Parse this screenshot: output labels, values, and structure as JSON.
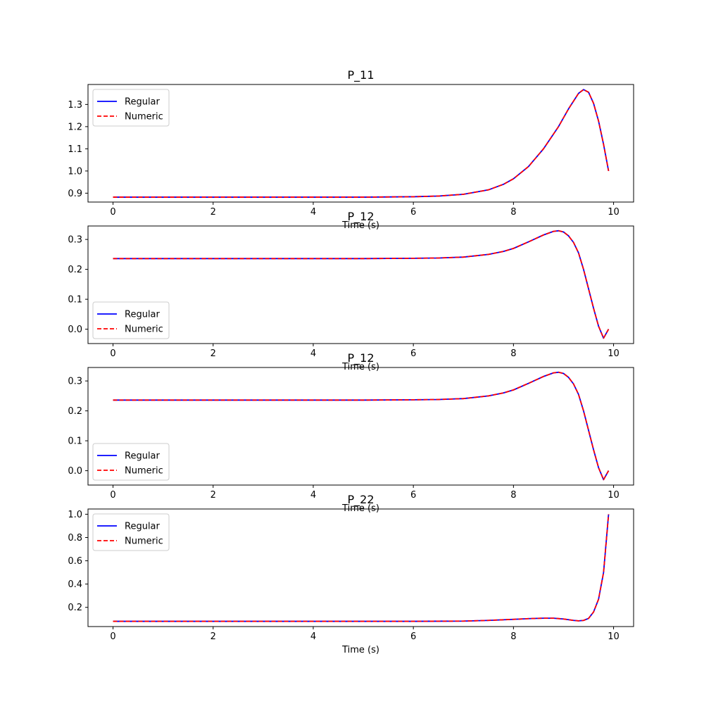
{
  "chart_data": [
    {
      "type": "line",
      "title": "P_11",
      "xlabel": "Time (s)",
      "ylabel": "",
      "xlim": [
        -0.5,
        10.4
      ],
      "ylim": [
        0.86,
        1.39
      ],
      "xticks": [
        0,
        2,
        4,
        6,
        8,
        10
      ],
      "xtick_labels": [
        "0",
        "2",
        "4",
        "6",
        "8",
        "10"
      ],
      "yticks": [
        0.9,
        1.0,
        1.1,
        1.2,
        1.3
      ],
      "ytick_labels": [
        "0.9",
        "1.0",
        "1.1",
        "1.2",
        "1.3"
      ],
      "grid": false,
      "legend": "upper-left",
      "x": [
        0,
        1,
        2,
        3,
        4,
        5,
        6,
        6.5,
        7,
        7.5,
        7.8,
        8,
        8.3,
        8.6,
        8.9,
        9.1,
        9.3,
        9.4,
        9.5,
        9.6,
        9.7,
        9.8,
        9.9
      ],
      "series": [
        {
          "name": "Regular",
          "color": "#0000ff",
          "dash": "solid",
          "values": [
            0.882,
            0.882,
            0.882,
            0.882,
            0.882,
            0.882,
            0.884,
            0.887,
            0.895,
            0.915,
            0.94,
            0.965,
            1.02,
            1.1,
            1.2,
            1.28,
            1.35,
            1.367,
            1.355,
            1.305,
            1.225,
            1.12,
            1.0
          ]
        },
        {
          "name": "Numeric",
          "color": "#ff0000",
          "dash": "dashed",
          "values": [
            0.882,
            0.882,
            0.882,
            0.882,
            0.882,
            0.882,
            0.884,
            0.887,
            0.895,
            0.915,
            0.94,
            0.965,
            1.02,
            1.1,
            1.2,
            1.28,
            1.35,
            1.367,
            1.355,
            1.305,
            1.225,
            1.12,
            1.0
          ]
        }
      ]
    },
    {
      "type": "line",
      "title": "P_12",
      "xlabel": "Time (s)",
      "ylabel": "",
      "xlim": [
        -0.5,
        10.4
      ],
      "ylim": [
        -0.048,
        0.345
      ],
      "xticks": [
        0,
        2,
        4,
        6,
        8,
        10
      ],
      "xtick_labels": [
        "0",
        "2",
        "4",
        "6",
        "8",
        "10"
      ],
      "yticks": [
        0.0,
        0.1,
        0.2,
        0.3
      ],
      "ytick_labels": [
        "0.0",
        "0.1",
        "0.2",
        "0.3"
      ],
      "grid": false,
      "legend": "lower-left",
      "x": [
        0,
        1,
        2,
        3,
        4,
        5,
        6,
        6.5,
        7,
        7.5,
        7.8,
        8,
        8.3,
        8.6,
        8.8,
        8.9,
        9.0,
        9.1,
        9.2,
        9.3,
        9.4,
        9.5,
        9.6,
        9.7,
        9.8,
        9.9
      ],
      "series": [
        {
          "name": "Regular",
          "color": "#0000ff",
          "dash": "solid",
          "values": [
            0.236,
            0.236,
            0.236,
            0.236,
            0.236,
            0.236,
            0.237,
            0.238,
            0.241,
            0.25,
            0.26,
            0.27,
            0.292,
            0.315,
            0.327,
            0.329,
            0.325,
            0.312,
            0.29,
            0.255,
            0.2,
            0.135,
            0.07,
            0.01,
            -0.03,
            0.0
          ]
        },
        {
          "name": "Numeric",
          "color": "#ff0000",
          "dash": "dashed",
          "values": [
            0.236,
            0.236,
            0.236,
            0.236,
            0.236,
            0.236,
            0.237,
            0.238,
            0.241,
            0.25,
            0.26,
            0.27,
            0.292,
            0.315,
            0.327,
            0.329,
            0.325,
            0.312,
            0.29,
            0.255,
            0.2,
            0.135,
            0.07,
            0.01,
            -0.03,
            0.0
          ]
        }
      ]
    },
    {
      "type": "line",
      "title": "P_12",
      "xlabel": "Time (s)",
      "ylabel": "",
      "xlim": [
        -0.5,
        10.4
      ],
      "ylim": [
        -0.048,
        0.345
      ],
      "xticks": [
        0,
        2,
        4,
        6,
        8,
        10
      ],
      "xtick_labels": [
        "0",
        "2",
        "4",
        "6",
        "8",
        "10"
      ],
      "yticks": [
        0.0,
        0.1,
        0.2,
        0.3
      ],
      "ytick_labels": [
        "0.0",
        "0.1",
        "0.2",
        "0.3"
      ],
      "grid": false,
      "legend": "lower-left",
      "x": [
        0,
        1,
        2,
        3,
        4,
        5,
        6,
        6.5,
        7,
        7.5,
        7.8,
        8,
        8.3,
        8.6,
        8.8,
        8.9,
        9.0,
        9.1,
        9.2,
        9.3,
        9.4,
        9.5,
        9.6,
        9.7,
        9.8,
        9.9
      ],
      "series": [
        {
          "name": "Regular",
          "color": "#0000ff",
          "dash": "solid",
          "values": [
            0.236,
            0.236,
            0.236,
            0.236,
            0.236,
            0.236,
            0.237,
            0.238,
            0.241,
            0.25,
            0.26,
            0.27,
            0.292,
            0.315,
            0.327,
            0.329,
            0.325,
            0.312,
            0.29,
            0.255,
            0.2,
            0.135,
            0.07,
            0.01,
            -0.03,
            0.0
          ]
        },
        {
          "name": "Numeric",
          "color": "#ff0000",
          "dash": "dashed",
          "values": [
            0.236,
            0.236,
            0.236,
            0.236,
            0.236,
            0.236,
            0.237,
            0.238,
            0.241,
            0.25,
            0.26,
            0.27,
            0.292,
            0.315,
            0.327,
            0.329,
            0.325,
            0.312,
            0.29,
            0.255,
            0.2,
            0.135,
            0.07,
            0.01,
            -0.03,
            0.0
          ]
        }
      ]
    },
    {
      "type": "line",
      "title": "P_22",
      "xlabel": "Time (s)",
      "ylabel": "",
      "xlim": [
        -0.5,
        10.4
      ],
      "ylim": [
        0.035,
        1.045
      ],
      "xticks": [
        0,
        2,
        4,
        6,
        8,
        10
      ],
      "xtick_labels": [
        "0",
        "2",
        "4",
        "6",
        "8",
        "10"
      ],
      "yticks": [
        0.2,
        0.4,
        0.6,
        0.8,
        1.0
      ],
      "ytick_labels": [
        "0.2",
        "0.4",
        "0.6",
        "0.8",
        "1.0"
      ],
      "grid": false,
      "legend": "upper-left",
      "x": [
        0,
        1,
        2,
        3,
        4,
        5,
        6,
        7,
        7.5,
        8,
        8.3,
        8.6,
        8.8,
        9.0,
        9.2,
        9.3,
        9.4,
        9.5,
        9.6,
        9.7,
        9.8,
        9.9
      ],
      "series": [
        {
          "name": "Regular",
          "color": "#0000ff",
          "dash": "solid",
          "values": [
            0.08,
            0.08,
            0.08,
            0.08,
            0.08,
            0.08,
            0.08,
            0.082,
            0.088,
            0.097,
            0.103,
            0.107,
            0.107,
            0.1,
            0.088,
            0.084,
            0.088,
            0.105,
            0.16,
            0.27,
            0.5,
            1.0
          ]
        },
        {
          "name": "Numeric",
          "color": "#ff0000",
          "dash": "dashed",
          "values": [
            0.08,
            0.08,
            0.08,
            0.08,
            0.08,
            0.08,
            0.08,
            0.082,
            0.088,
            0.097,
            0.103,
            0.107,
            0.107,
            0.1,
            0.088,
            0.084,
            0.088,
            0.105,
            0.16,
            0.27,
            0.5,
            1.0
          ]
        }
      ]
    }
  ]
}
